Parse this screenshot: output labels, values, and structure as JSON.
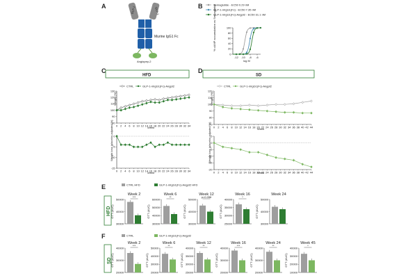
{
  "panels": {
    "A": "A",
    "B": "B",
    "C": "C",
    "D": "D",
    "E": "E",
    "F": "F"
  },
  "panelA": {
    "glp1_label": "GLP-1",
    "fc_label": "Murine IgG1 Fc",
    "angpt_label": "Angiopep-2"
  },
  "panelB": {
    "legend": [
      {
        "name": "Semaglutide - EC50 0.29 nM",
        "color": "#9e9e9e"
      },
      {
        "name": "GLP-1-mIgG1(Fc) - EC50 7.35 nM",
        "color": "#4a90b8"
      },
      {
        "name": "GLP-1-mIgG1(Fc)-Angpt2 - EC50 31.1 nM",
        "color": "#2e7d32"
      }
    ],
    "ylabel": "% cAMP accumulation vs Semaglutide",
    "xlabel": "log M",
    "xticks": [
      "-12",
      "-10",
      "-8",
      "-6"
    ],
    "yticks": [
      "0",
      "20",
      "40",
      "60",
      "80",
      "100"
    ],
    "curves_ec50_log": [
      -9.54,
      -8.13,
      -7.51
    ]
  },
  "panelC": {
    "header": "HFD",
    "legend_ctrl": "CTRL",
    "legend_treat": "GLP-1-mIgG1(Fc)-Angpt2",
    "weight_ylabel": "Weight (%)",
    "loss_ylabel": "Weight loss (placebo-adjusted %)",
    "xlabel": "Week",
    "weight_yticks": [
      "80",
      "90",
      "100",
      "110",
      "120",
      "130"
    ],
    "loss_yticks": [
      "0",
      "-5",
      "-10",
      "-15"
    ],
    "xticks": [
      "0",
      "2",
      "4",
      "6",
      "8",
      "10",
      "12",
      "14",
      "16",
      "18",
      "20",
      "22",
      "24",
      "26",
      "28",
      "30",
      "32",
      "34"
    ]
  },
  "panelD": {
    "header": "SD",
    "legend_ctrl": "CTRL",
    "legend_treat": "GLP-1-mIgG1(Fc)-Angpt2",
    "weight_ylabel": "Weight (%)",
    "loss_ylabel": "Weight loss (placebo-adjusted %)",
    "xlabel": "Week",
    "weight_yticks": [
      "70",
      "80",
      "90",
      "100",
      "110",
      "120"
    ],
    "loss_yticks": [
      "5",
      "0",
      "-5",
      "-10",
      "-15",
      "-20"
    ],
    "xticks": [
      "0",
      "2",
      "4",
      "6",
      "8",
      "10",
      "12",
      "14",
      "16",
      "18",
      "20",
      "22",
      "24",
      "26",
      "28",
      "30",
      "32",
      "34",
      "36",
      "38",
      "40",
      "42",
      "44"
    ]
  },
  "panelE": {
    "side_label": "HFD",
    "legend_ctrl": "CTRL HFD",
    "legend_treat": "GLP-1-mIgG1(Fc)-Angpt2 HFD",
    "ylabel": "GTT (AUC)",
    "weeks": [
      {
        "title": "Week 2",
        "sig": "***",
        "yticks": [
          "50000",
          "40000",
          "30000"
        ]
      },
      {
        "title": "Week 6",
        "sig": "**",
        "yticks": [
          "60000",
          "50000",
          "40000",
          "30000"
        ]
      },
      {
        "title": "Week 12",
        "sig": "p=0.056",
        "yticks": [
          "50000",
          "40000",
          "30000"
        ]
      },
      {
        "title": "Week 16",
        "sig": "*",
        "yticks": [
          "40000",
          "35000",
          "30000",
          "25000"
        ]
      },
      {
        "title": "Week 24",
        "sig": "",
        "yticks": [
          "50000",
          "40000",
          "30000"
        ]
      }
    ]
  },
  "panelF": {
    "side_label": "SD",
    "legend_ctrl": "CTRL",
    "legend_treat": "GLP-1-mIgG1(Fc)-Angpt2",
    "ylabel": "GTT (AUC)",
    "weeks": [
      {
        "title": "Week 2",
        "sig": "***",
        "yticks": [
          "40000",
          "30000",
          "20000"
        ]
      },
      {
        "title": "Week 6",
        "sig": "**",
        "yticks": [
          "50000",
          "40000",
          "30000",
          "20000"
        ]
      },
      {
        "title": "Week 12",
        "sig": "**",
        "yticks": [
          "40000",
          "35000",
          "30000",
          "25000"
        ]
      },
      {
        "title": "Week 16",
        "sig": "***",
        "yticks": [
          "40000",
          "30000",
          "20000"
        ]
      },
      {
        "title": "Week 24",
        "sig": "**",
        "yticks": [
          "40000",
          "30000",
          "20000"
        ]
      },
      {
        "title": "Week 45",
        "sig": "*",
        "yticks": [
          "40000",
          "30000",
          "20000",
          "10000"
        ]
      }
    ]
  },
  "chart_data": [
    {
      "type": "line",
      "title": "HFD Weight",
      "xlabel": "Week",
      "ylabel": "Weight (%)",
      "ylim": [
        80,
        130
      ],
      "series": [
        {
          "name": "CTRL",
          "x": [
            0,
            2,
            4,
            6,
            8,
            10,
            12,
            14,
            16,
            18,
            20,
            22,
            24,
            26,
            28,
            30,
            32,
            34
          ],
          "values": [
            100,
            104,
            106,
            108,
            110,
            112,
            114,
            115,
            116,
            117,
            116,
            118,
            119,
            120,
            121,
            122,
            123,
            124
          ]
        },
        {
          "name": "GLP-1-mIgG1(Fc)-Angpt2",
          "x": [
            0,
            2,
            4,
            6,
            8,
            10,
            12,
            14,
            16,
            18,
            20,
            22,
            24,
            26,
            28,
            30,
            32,
            34
          ],
          "values": [
            100,
            100,
            102,
            104,
            105,
            107,
            109,
            111,
            113,
            112,
            112,
            114,
            116,
            116,
            117,
            118,
            119,
            120
          ]
        }
      ]
    },
    {
      "type": "line",
      "title": "SD Weight",
      "xlabel": "Week",
      "ylabel": "Weight (%)",
      "ylim": [
        70,
        120
      ],
      "series": [
        {
          "name": "CTRL",
          "x": [
            0,
            4,
            8,
            12,
            16,
            20,
            24,
            28,
            32,
            36,
            40,
            44
          ],
          "values": [
            100,
            99,
            98,
            98,
            99,
            98,
            99,
            100,
            100,
            101,
            103,
            105
          ]
        },
        {
          "name": "GLP-1-mIgG1(Fc)-Angpt2",
          "x": [
            0,
            4,
            8,
            12,
            16,
            20,
            24,
            28,
            32,
            36,
            40,
            44
          ],
          "values": [
            100,
            96,
            94,
            93,
            92,
            91,
            90,
            89,
            88,
            88,
            87,
            87
          ]
        }
      ]
    },
    {
      "type": "bar",
      "title": "HFD GTT (AUC)",
      "categories": [
        "Week 2",
        "Week 6",
        "Week 12",
        "Week 16",
        "Week 24"
      ],
      "series": [
        {
          "name": "CTRL HFD",
          "values": [
            48000,
            52000,
            45000,
            37000,
            44000
          ]
        },
        {
          "name": "GLP-1-mIgG1(Fc)-Angpt2 HFD",
          "values": [
            37000,
            42000,
            40000,
            34000,
            42000
          ]
        }
      ]
    },
    {
      "type": "bar",
      "title": "SD GTT (AUC)",
      "categories": [
        "Week 2",
        "Week 6",
        "Week 12",
        "Week 16",
        "Week 24",
        "Week 45"
      ],
      "series": [
        {
          "name": "CTRL",
          "values": [
            36000,
            43000,
            37000,
            38000,
            37000,
            33000
          ]
        },
        {
          "name": "GLP-1-mIgG1(Fc)-Angpt2",
          "values": [
            27000,
            36000,
            33000,
            30000,
            30000,
            25000
          ]
        }
      ]
    }
  ]
}
